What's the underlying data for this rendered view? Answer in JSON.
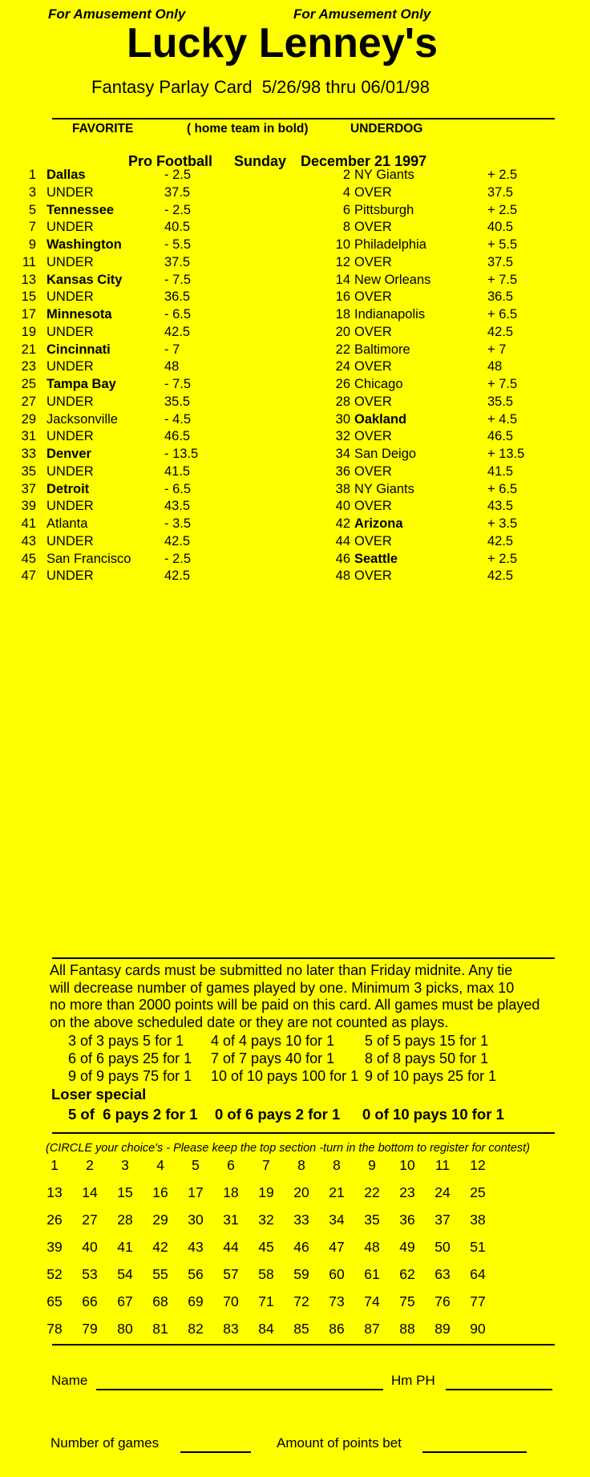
{
  "colors": {
    "background": "#ffff00",
    "text": "#000000"
  },
  "header": {
    "amusement_left": "For Amusement Only",
    "amusement_right": "For Amusement Only",
    "title": "Lucky Lenney's",
    "subtitle": "Fantasy Parlay Card  5/26/98 thru 06/01/98",
    "col_favorite": "FAVORITE",
    "col_note": "( home team in bold)",
    "col_underdog": "UNDERDOG"
  },
  "schedule": {
    "league": "Pro Football",
    "day": "Sunday",
    "date": "December 21 1997"
  },
  "games": [
    {
      "n1": "1",
      "fav": "Dallas",
      "fav_bold": true,
      "fav_line": "- 2.5",
      "n2": "2",
      "dog": "NY Giants",
      "dog_bold": false,
      "dog_line": "+ 2.5"
    },
    {
      "n1": "3",
      "fav": "UNDER",
      "fav_bold": false,
      "fav_line": "37.5",
      "n2": "4",
      "dog": "OVER",
      "dog_bold": false,
      "dog_line": "37.5"
    },
    {
      "n1": "5",
      "fav": "Tennessee",
      "fav_bold": true,
      "fav_line": "- 2.5",
      "n2": "6",
      "dog": "Pittsburgh",
      "dog_bold": false,
      "dog_line": "+ 2.5"
    },
    {
      "n1": "7",
      "fav": "UNDER",
      "fav_bold": false,
      "fav_line": "40.5",
      "n2": "8",
      "dog": "OVER",
      "dog_bold": false,
      "dog_line": "40.5"
    },
    {
      "n1": "9",
      "fav": "Washington",
      "fav_bold": true,
      "fav_line": "- 5.5",
      "n2": "10",
      "dog": "Philadelphia",
      "dog_bold": false,
      "dog_line": "+ 5.5"
    },
    {
      "n1": "11",
      "fav": "UNDER",
      "fav_bold": false,
      "fav_line": "37.5",
      "n2": "12",
      "dog": "OVER",
      "dog_bold": false,
      "dog_line": "37.5"
    },
    {
      "n1": "13",
      "fav": "Kansas City",
      "fav_bold": true,
      "fav_line": "- 7.5",
      "n2": "14",
      "dog": "New Orleans",
      "dog_bold": false,
      "dog_line": "+ 7.5"
    },
    {
      "n1": "15",
      "fav": "UNDER",
      "fav_bold": false,
      "fav_line": "36.5",
      "n2": "16",
      "dog": "OVER",
      "dog_bold": false,
      "dog_line": "36.5"
    },
    {
      "n1": "17",
      "fav": "Minnesota",
      "fav_bold": true,
      "fav_line": "- 6.5",
      "n2": "18",
      "dog": "Indianapolis",
      "dog_bold": false,
      "dog_line": "+ 6.5"
    },
    {
      "n1": "19",
      "fav": "UNDER",
      "fav_bold": false,
      "fav_line": "42.5",
      "n2": "20",
      "dog": "OVER",
      "dog_bold": false,
      "dog_line": "42.5"
    },
    {
      "n1": "21",
      "fav": "Cincinnati",
      "fav_bold": true,
      "fav_line": "- 7",
      "n2": "22",
      "dog": "Baltimore",
      "dog_bold": false,
      "dog_line": "+ 7"
    },
    {
      "n1": "23",
      "fav": "UNDER",
      "fav_bold": false,
      "fav_line": "48",
      "n2": "24",
      "dog": "OVER",
      "dog_bold": false,
      "dog_line": "48"
    },
    {
      "n1": "25",
      "fav": "Tampa Bay",
      "fav_bold": true,
      "fav_line": "- 7.5",
      "n2": "26",
      "dog": "Chicago",
      "dog_bold": false,
      "dog_line": "+ 7.5"
    },
    {
      "n1": "27",
      "fav": "UNDER",
      "fav_bold": false,
      "fav_line": "35.5",
      "n2": "28",
      "dog": "OVER",
      "dog_bold": false,
      "dog_line": "35.5"
    },
    {
      "n1": "29",
      "fav": "Jacksonville",
      "fav_bold": false,
      "fav_line": "- 4.5",
      "n2": "30",
      "dog": "Oakland",
      "dog_bold": true,
      "dog_line": "+ 4.5"
    },
    {
      "n1": "31",
      "fav": "UNDER",
      "fav_bold": false,
      "fav_line": "46.5",
      "n2": "32",
      "dog": "OVER",
      "dog_bold": false,
      "dog_line": "46.5"
    },
    {
      "n1": "33",
      "fav": "Denver",
      "fav_bold": true,
      "fav_line": "- 13.5",
      "n2": "34",
      "dog": "San Deigo",
      "dog_bold": false,
      "dog_line": "+ 13.5"
    },
    {
      "n1": "35",
      "fav": "UNDER",
      "fav_bold": false,
      "fav_line": "41.5",
      "n2": "36",
      "dog": "OVER",
      "dog_bold": false,
      "dog_line": "41.5"
    },
    {
      "n1": "37",
      "fav": "Detroit",
      "fav_bold": true,
      "fav_line": "- 6.5",
      "n2": "38",
      "dog": "NY Giants",
      "dog_bold": false,
      "dog_line": "+ 6.5"
    },
    {
      "n1": "39",
      "fav": "UNDER",
      "fav_bold": false,
      "fav_line": "43.5",
      "n2": "40",
      "dog": "OVER",
      "dog_bold": false,
      "dog_line": "43.5"
    },
    {
      "n1": "41",
      "fav": "Atlanta",
      "fav_bold": false,
      "fav_line": "- 3.5",
      "n2": "42",
      "dog": "Arizona",
      "dog_bold": true,
      "dog_line": "+ 3.5"
    },
    {
      "n1": "43",
      "fav": "UNDER",
      "fav_bold": false,
      "fav_line": "42.5",
      "n2": "44",
      "dog": "OVER",
      "dog_bold": false,
      "dog_line": "42.5"
    },
    {
      "n1": "45",
      "fav": "San Francisco",
      "fav_bold": false,
      "fav_line": "- 2.5",
      "n2": "46",
      "dog": "Seattle",
      "dog_bold": true,
      "dog_line": "+ 2.5"
    },
    {
      "n1": "47",
      "fav": "UNDER",
      "fav_bold": false,
      "fav_line": "42.5",
      "n2": "48",
      "dog": "OVER",
      "dog_bold": false,
      "dog_line": "42.5"
    }
  ],
  "rules_lines": [
    "All Fantasy cards must be submitted no later than Friday midnite. Any tie",
    "will decrease number of games played by one. Minimum 3 picks, max 10",
    "no more than 2000 points will be paid on this card. All games must be played",
    "on the above scheduled date or they are not counted as plays."
  ],
  "payouts": {
    "rows": [
      [
        "3 of 3 pays 5 for 1",
        "4 of 4 pays 10 for 1",
        "5 of 5 pays 15 for 1"
      ],
      [
        "6 of 6 pays 25 for 1",
        "7 of 7 pays 40 for 1",
        "8 of 8 pays 50 for 1"
      ],
      [
        "9 of 9 pays 75 for 1",
        "10 of 10 pays 100 for 1",
        "9 of 10 pays 25 for 1"
      ]
    ],
    "loser_special_label": "Loser special",
    "loser_special_row": [
      "5 of  6 pays 2 for 1",
      "0 of 6 pays 2 for 1",
      "0 of 10 pays 10 for 1"
    ]
  },
  "circle_note": "(CIRCLE your choice's - Please keep the top section -turn in the bottom to register for contest)",
  "grid_rows": [
    [
      "1",
      "2",
      "3",
      "4",
      "5",
      "6",
      "7",
      "8",
      "8",
      "9",
      "10",
      "11",
      "12"
    ],
    [
      "13",
      "14",
      "15",
      "16",
      "17",
      "18",
      "19",
      "20",
      "21",
      "22",
      "23",
      "24",
      "25"
    ],
    [
      "26",
      "27",
      "28",
      "29",
      "30",
      "31",
      "32",
      "33",
      "34",
      "35",
      "36",
      "37",
      "38"
    ],
    [
      "39",
      "40",
      "41",
      "42",
      "43",
      "44",
      "45",
      "46",
      "47",
      "48",
      "49",
      "50",
      "51"
    ],
    [
      "52",
      "53",
      "54",
      "55",
      "56",
      "57",
      "58",
      "59",
      "60",
      "61",
      "62",
      "63",
      "64"
    ],
    [
      "65",
      "66",
      "67",
      "68",
      "69",
      "70",
      "71",
      "72",
      "73",
      "74",
      "75",
      "76",
      "77"
    ],
    [
      "78",
      "79",
      "80",
      "81",
      "82",
      "83",
      "84",
      "85",
      "86",
      "87",
      "88",
      "89",
      "90"
    ]
  ],
  "form": {
    "name_label": "Name",
    "home_phone_label": "Hm PH",
    "games_label": "Number of games",
    "points_label": "Amount of points bet"
  }
}
